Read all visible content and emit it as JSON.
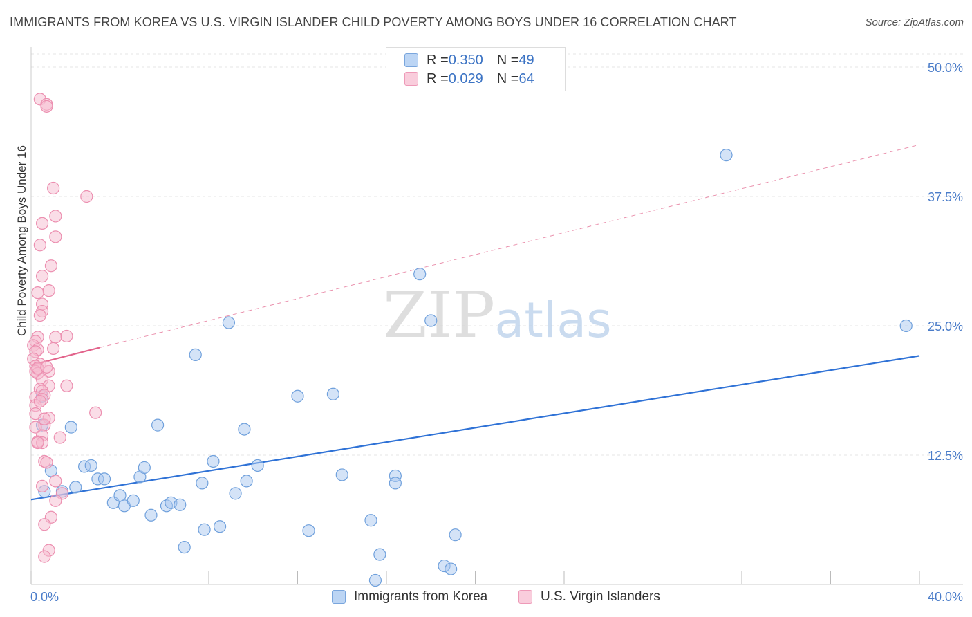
{
  "title": "IMMIGRANTS FROM KOREA VS U.S. VIRGIN ISLANDER CHILD POVERTY AMONG BOYS UNDER 16 CORRELATION CHART",
  "source": "Source: ZipAtlas.com",
  "watermark": {
    "zip": "ZIP",
    "atlas": "atlas"
  },
  "colors": {
    "blue_fill": "#a9c8f0",
    "blue_stroke": "#6fa0dc",
    "blue_line": "#2f72d6",
    "pink_fill": "#f6bcd0",
    "pink_stroke": "#ec8fb0",
    "pink_line": "#e2638b",
    "grid": "#e6e6e6",
    "axis_text": "#4a7cc9"
  },
  "legend": {
    "rows": [
      {
        "r_label": "R = ",
        "r_value": "0.350",
        "n_label": "N = ",
        "n_value": "49"
      },
      {
        "r_label": "R = ",
        "r_value": "0.029",
        "n_label": "N = ",
        "n_value": "64"
      }
    ]
  },
  "chart_data": {
    "type": "scatter",
    "title": "IMMIGRANTS FROM KOREA VS U.S. VIRGIN ISLANDER CHILD POVERTY AMONG BOYS UNDER 16 CORRELATION CHART",
    "xlabel": "",
    "ylabel": "Child Poverty Among Boys Under 16",
    "xlim": [
      0,
      40
    ],
    "ylim": [
      0,
      50
    ],
    "x_tick_labels": [
      "0.0%",
      "40.0%"
    ],
    "y_tick_labels": [
      "12.5%",
      "25.0%",
      "37.5%",
      "50.0%"
    ],
    "y_ticks": [
      12.5,
      25,
      37.5,
      50
    ],
    "grid": true,
    "legend_position": "top-center",
    "series": [
      {
        "name": "Immigrants from Korea",
        "color": "blue",
        "R": 0.35,
        "N": 49,
        "trend": {
          "x": [
            0,
            40
          ],
          "y": [
            8.2,
            22.1
          ],
          "dashed_extension": false
        },
        "points": [
          [
            0.5,
            18.2
          ],
          [
            0.5,
            15.4
          ],
          [
            0.9,
            11.0
          ],
          [
            1.4,
            9.0
          ],
          [
            1.8,
            15.2
          ],
          [
            2.0,
            9.4
          ],
          [
            2.4,
            11.4
          ],
          [
            2.7,
            11.5
          ],
          [
            3.0,
            10.2
          ],
          [
            3.3,
            10.2
          ],
          [
            3.7,
            7.9
          ],
          [
            4.0,
            8.6
          ],
          [
            4.2,
            7.6
          ],
          [
            4.6,
            8.1
          ],
          [
            4.9,
            10.4
          ],
          [
            5.1,
            11.3
          ],
          [
            5.4,
            6.7
          ],
          [
            5.7,
            15.4
          ],
          [
            6.1,
            7.6
          ],
          [
            6.3,
            7.9
          ],
          [
            6.7,
            7.7
          ],
          [
            6.9,
            3.6
          ],
          [
            7.4,
            22.2
          ],
          [
            7.7,
            9.8
          ],
          [
            7.8,
            5.3
          ],
          [
            8.2,
            11.9
          ],
          [
            8.5,
            5.6
          ],
          [
            8.9,
            25.3
          ],
          [
            9.2,
            8.8
          ],
          [
            9.6,
            15.0
          ],
          [
            9.7,
            10.0
          ],
          [
            10.2,
            11.5
          ],
          [
            12.0,
            18.2
          ],
          [
            12.5,
            5.2
          ],
          [
            13.6,
            18.4
          ],
          [
            14.0,
            10.6
          ],
          [
            15.3,
            6.2
          ],
          [
            15.5,
            0.4
          ],
          [
            15.7,
            2.9
          ],
          [
            16.4,
            10.5
          ],
          [
            16.4,
            9.8
          ],
          [
            17.5,
            30.0
          ],
          [
            18.0,
            25.5
          ],
          [
            18.6,
            1.8
          ],
          [
            18.9,
            1.5
          ],
          [
            19.1,
            4.8
          ],
          [
            31.3,
            41.5
          ],
          [
            39.4,
            25.0
          ],
          [
            0.6,
            9.0
          ]
        ]
      },
      {
        "name": "U.S. Virgin Islanders",
        "color": "pink",
        "R": 0.029,
        "N": 64,
        "trend": {
          "x": [
            0,
            3.1
          ],
          "y": [
            21.2,
            22.9
          ],
          "dashed_extension": {
            "x": [
              3.1,
              40
            ],
            "y": [
              22.9,
              42.5
            ]
          }
        },
        "points": [
          [
            0.4,
            46.9
          ],
          [
            0.7,
            46.4
          ],
          [
            0.7,
            46.2
          ],
          [
            1.0,
            38.3
          ],
          [
            2.5,
            37.5
          ],
          [
            1.1,
            35.6
          ],
          [
            0.5,
            34.9
          ],
          [
            1.1,
            33.6
          ],
          [
            0.4,
            32.8
          ],
          [
            0.9,
            30.8
          ],
          [
            0.5,
            29.8
          ],
          [
            0.8,
            28.4
          ],
          [
            0.3,
            28.2
          ],
          [
            0.5,
            27.1
          ],
          [
            0.5,
            26.4
          ],
          [
            0.4,
            26.0
          ],
          [
            1.6,
            24.0
          ],
          [
            0.3,
            23.9
          ],
          [
            1.1,
            23.9
          ],
          [
            0.2,
            23.5
          ],
          [
            0.1,
            23.1
          ],
          [
            0.3,
            22.7
          ],
          [
            1.0,
            22.8
          ],
          [
            0.2,
            22.5
          ],
          [
            0.1,
            21.8
          ],
          [
            0.4,
            21.3
          ],
          [
            0.2,
            21.1
          ],
          [
            0.3,
            20.8
          ],
          [
            0.2,
            20.6
          ],
          [
            0.8,
            20.6
          ],
          [
            0.3,
            20.4
          ],
          [
            0.5,
            19.8
          ],
          [
            1.6,
            19.2
          ],
          [
            0.8,
            19.2
          ],
          [
            0.4,
            18.9
          ],
          [
            0.5,
            18.7
          ],
          [
            0.6,
            18.3
          ],
          [
            0.2,
            18.1
          ],
          [
            0.5,
            17.9
          ],
          [
            0.2,
            17.3
          ],
          [
            2.9,
            16.6
          ],
          [
            0.8,
            16.1
          ],
          [
            0.2,
            16.5
          ],
          [
            0.6,
            15.4
          ],
          [
            0.2,
            15.2
          ],
          [
            0.5,
            14.4
          ],
          [
            1.3,
            14.2
          ],
          [
            0.3,
            13.8
          ],
          [
            0.5,
            13.7
          ],
          [
            0.3,
            13.7
          ],
          [
            0.6,
            11.9
          ],
          [
            0.7,
            11.8
          ],
          [
            1.1,
            10.0
          ],
          [
            0.5,
            9.5
          ],
          [
            1.4,
            8.8
          ],
          [
            1.1,
            8.1
          ],
          [
            0.9,
            6.5
          ],
          [
            0.6,
            5.8
          ],
          [
            0.8,
            3.3
          ],
          [
            0.6,
            2.7
          ],
          [
            0.3,
            20.9
          ],
          [
            0.7,
            21.0
          ],
          [
            0.4,
            17.7
          ],
          [
            0.6,
            16.0
          ]
        ]
      }
    ]
  },
  "bottom_legend": [
    "Immigrants from Korea",
    "U.S. Virgin Islanders"
  ]
}
